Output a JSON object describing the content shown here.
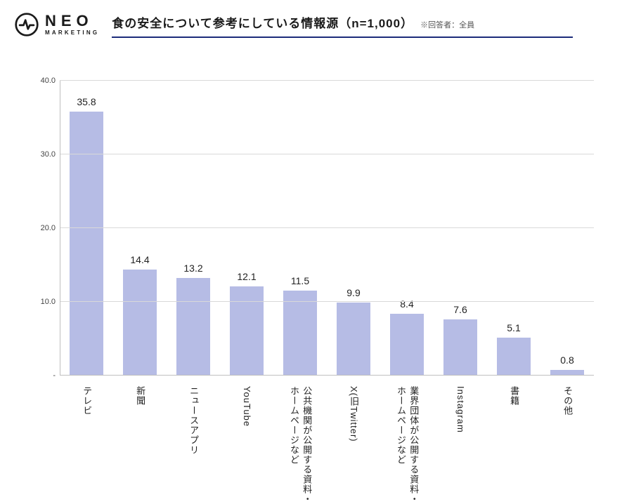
{
  "logo": {
    "main": "NEO",
    "sub": "MARKETING",
    "stroke": "#1a1a1a"
  },
  "title": "食の安全について参考にしている情報源（n=1,000）",
  "note": "※回答者：全員",
  "underline_color": "#1c2b7a",
  "chart": {
    "type": "bar",
    "ylim": [
      0,
      40
    ],
    "yticks": [
      0,
      10,
      20,
      30,
      40
    ],
    "ytick_labels": [
      "-",
      "10.0",
      "20.0",
      "30.0",
      "40.0"
    ],
    "bar_color": "#b6bce5",
    "grid_color": "#d9d9d9",
    "axis_color": "#bfbfbf",
    "label_fontsize": 14,
    "categories": [
      "テレビ",
      "新聞",
      "ニュースアプリ",
      "YouTube",
      "公共機関が公開する資料・\nホームページなど",
      "X(旧Twitter)",
      "業界団体が公開する資料・\nホームページなど",
      "Instagram",
      "書籍",
      "その他"
    ],
    "values": [
      35.8,
      14.4,
      13.2,
      12.1,
      11.5,
      9.9,
      8.4,
      7.6,
      5.1,
      0.8
    ],
    "value_labels": [
      "35.8",
      "14.4",
      "13.2",
      "12.1",
      "11.5",
      "9.9",
      "8.4",
      "7.6",
      "5.1",
      "0.8"
    ]
  }
}
